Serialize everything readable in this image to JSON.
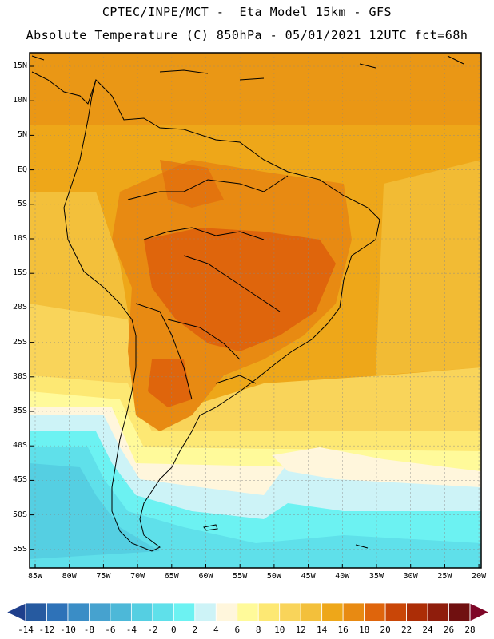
{
  "title_line1": "CPTEC/INPE/MCT -  Eta Model 15km - GFS",
  "title_line2": "Absolute Temperature (C) 850hPa - 05/01/2021 12UTC fct=68h",
  "lat_labels": [
    "15N",
    "10N",
    "5N",
    "EQ",
    "5S",
    "10S",
    "15S",
    "20S",
    "25S",
    "30S",
    "35S",
    "40S",
    "45S",
    "50S",
    "55S"
  ],
  "lon_labels": [
    "85W",
    "80W",
    "75W",
    "70W",
    "65W",
    "60W",
    "55W",
    "50W",
    "45W",
    "40W",
    "35W",
    "30W",
    "25W",
    "20W"
  ],
  "colorbar": {
    "labels": [
      "-14",
      "-12",
      "-10",
      "-8",
      "-6",
      "-4",
      "-2",
      "0",
      "2",
      "4",
      "6",
      "8",
      "10",
      "12",
      "14",
      "16",
      "18",
      "20",
      "22",
      "24",
      "26",
      "28"
    ],
    "colors": [
      "#1f3f8c",
      "#265aa0",
      "#2e72b8",
      "#3a8dc6",
      "#46a2cf",
      "#4db8d8",
      "#55cfe2",
      "#5fe0ea",
      "#6cf2f2",
      "#cdf3f7",
      "#fff6dc",
      "#fffa9a",
      "#fde873",
      "#f9d45a",
      "#f3c03b",
      "#eea719",
      "#e88a12",
      "#df650c",
      "#c94607",
      "#ac2d06",
      "#8f1d0c",
      "#701010",
      "#7e0627"
    ]
  }
}
